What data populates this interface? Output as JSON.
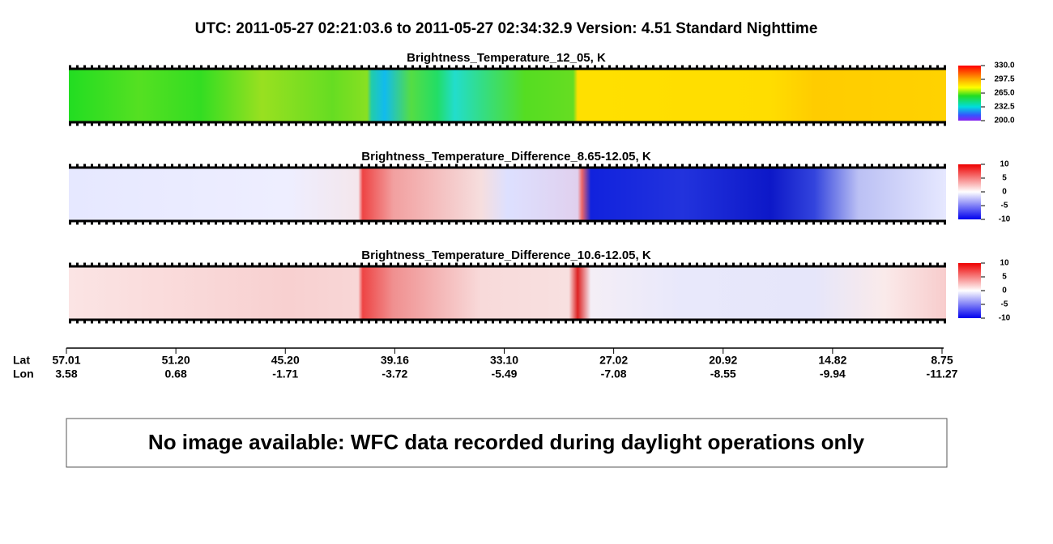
{
  "header": {
    "title": "UTC:  2011-05-27   02:21:03.6  to  2011-05-27   02:34:32.9    Version: 4.51  Standard Nighttime"
  },
  "panels": [
    {
      "title": "Brightness_Temperature_12_05, K",
      "colorbar_labels": [
        "330.0",
        "297.5",
        "265.0",
        "232.5",
        "200.0"
      ]
    },
    {
      "title": "Brightness_Temperature_Difference_8.65-12.05, K",
      "colorbar_labels": [
        "10",
        "5",
        "0",
        "-5",
        "-10"
      ]
    },
    {
      "title": "Brightness_Temperature_Difference_10.6-12.05, K",
      "colorbar_labels": [
        "10",
        "5",
        "0",
        "-5",
        "-10"
      ]
    }
  ],
  "axis": {
    "row_labels": [
      "Lat",
      "Lon"
    ],
    "ticks": [
      {
        "lat": "57.01",
        "lon": "3.58"
      },
      {
        "lat": "51.20",
        "lon": "0.68"
      },
      {
        "lat": "45.20",
        "lon": "-1.71"
      },
      {
        "lat": "39.16",
        "lon": "-3.72"
      },
      {
        "lat": "33.10",
        "lon": "-5.49"
      },
      {
        "lat": "27.02",
        "lon": "-7.08"
      },
      {
        "lat": "20.92",
        "lon": "-8.55"
      },
      {
        "lat": "14.82",
        "lon": "-9.94"
      },
      {
        "lat": "8.75",
        "lon": "-11.27"
      }
    ]
  },
  "notice": "No image available: WFC data recorded during daylight operations only"
}
